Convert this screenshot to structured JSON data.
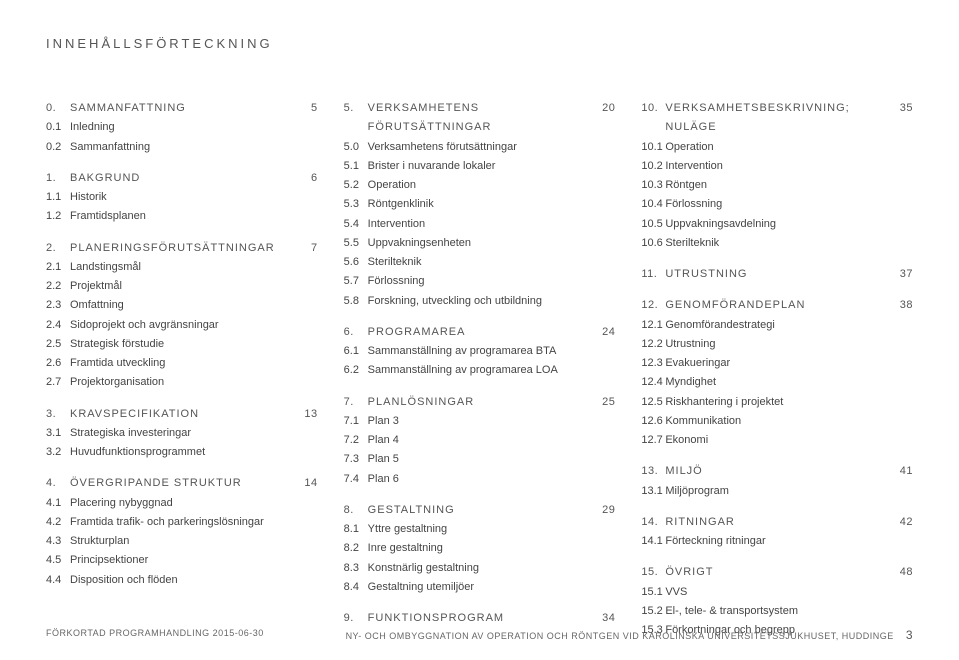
{
  "title": "INNEHÅLLSFÖRTECKNING",
  "columns": [
    [
      {
        "head": {
          "num": "0.",
          "label": "SAMMANFATTNING",
          "page": "5"
        },
        "items": [
          {
            "num": "0.1",
            "label": "Inledning"
          },
          {
            "num": "0.2",
            "label": "Sammanfattning"
          }
        ]
      },
      {
        "head": {
          "num": "1.",
          "label": "BAKGRUND",
          "page": "6"
        },
        "items": [
          {
            "num": "1.1",
            "label": "Historik"
          },
          {
            "num": "1.2",
            "label": "Framtidsplanen"
          }
        ]
      },
      {
        "head": {
          "num": "2.",
          "label": "PLANERINGSFÖRUTSÄTTNINGAR",
          "page": "7"
        },
        "items": [
          {
            "num": "2.1",
            "label": "Landstingsmål"
          },
          {
            "num": "2.2",
            "label": "Projektmål"
          },
          {
            "num": "2.3",
            "label": "Omfattning"
          },
          {
            "num": "2.4",
            "label": "Sidoprojekt och avgränsningar"
          },
          {
            "num": "2.5",
            "label": "Strategisk förstudie"
          },
          {
            "num": "2.6",
            "label": "Framtida utveckling"
          },
          {
            "num": "2.7",
            "label": "Projektorganisation"
          }
        ]
      },
      {
        "head": {
          "num": "3.",
          "label": "KRAVSPECIFIKATION",
          "page": "13"
        },
        "items": [
          {
            "num": "3.1",
            "label": "Strategiska investeringar"
          },
          {
            "num": "3.2",
            "label": "Huvudfunktionsprogrammet"
          }
        ]
      },
      {
        "head": {
          "num": "4.",
          "label": "ÖVERGRIPANDE STRUKTUR",
          "page": "14"
        },
        "items": [
          {
            "num": "4.1",
            "label": "Placering nybyggnad"
          },
          {
            "num": "4.2",
            "label": "Framtida trafik- och parkeringslösningar"
          },
          {
            "num": "4.3",
            "label": "Strukturplan"
          },
          {
            "num": "4.5",
            "label": "Principsektioner"
          },
          {
            "num": "4.4",
            "label": "Disposition och flöden"
          }
        ]
      }
    ],
    [
      {
        "head": {
          "num": "5.",
          "label": "VERKSAMHETENS FÖRUTSÄTTNINGAR",
          "page": "20"
        },
        "items": [
          {
            "num": "5.0",
            "label": "Verksamhetens förutsättningar"
          },
          {
            "num": "5.1",
            "label": "Brister i nuvarande lokaler"
          },
          {
            "num": "5.2",
            "label": "Operation"
          },
          {
            "num": "5.3",
            "label": "Röntgenklinik"
          },
          {
            "num": "5.4",
            "label": "Intervention"
          },
          {
            "num": "5.5",
            "label": "Uppvakningsenheten"
          },
          {
            "num": "5.6",
            "label": "Sterilteknik"
          },
          {
            "num": "5.7",
            "label": "Förlossning"
          },
          {
            "num": "5.8",
            "label": "Forskning, utveckling och utbildning"
          }
        ]
      },
      {
        "head": {
          "num": "6.",
          "label": "PROGRAMAREA",
          "page": "24"
        },
        "items": [
          {
            "num": "6.1",
            "label": "Sammanställning av programarea BTA"
          },
          {
            "num": "6.2",
            "label": "Sammanställning av programarea LOA"
          }
        ]
      },
      {
        "head": {
          "num": "7.",
          "label": "PLANLÖSNINGAR",
          "page": "25"
        },
        "items": [
          {
            "num": "7.1",
            "label": "Plan 3"
          },
          {
            "num": "7.2",
            "label": "Plan 4"
          },
          {
            "num": "7.3",
            "label": "Plan 5"
          },
          {
            "num": "7.4",
            "label": "Plan 6"
          }
        ]
      },
      {
        "head": {
          "num": "8.",
          "label": "GESTALTNING",
          "page": "29"
        },
        "items": [
          {
            "num": "8.1",
            "label": "Yttre gestaltning"
          },
          {
            "num": "8.2",
            "label": "Inre gestaltning"
          },
          {
            "num": "8.3",
            "label": "Konstnärlig gestaltning"
          },
          {
            "num": "8.4",
            "label": "Gestaltning utemiljöer"
          }
        ]
      },
      {
        "head": {
          "num": "9.",
          "label": "FUNKTIONSPROGRAM",
          "page": "34"
        },
        "items": []
      }
    ],
    [
      {
        "head": {
          "num": "10.",
          "label": "VERKSAMHETSBESKRIVNING; NULÄGE",
          "page": "35"
        },
        "items": [
          {
            "num": "10.1",
            "label": "Operation"
          },
          {
            "num": "10.2",
            "label": "Intervention"
          },
          {
            "num": "10.3",
            "label": "Röntgen"
          },
          {
            "num": "10.4",
            "label": "Förlossning"
          },
          {
            "num": "10.5",
            "label": "Uppvakningsavdelning"
          },
          {
            "num": "10.6",
            "label": "Sterilteknik"
          }
        ]
      },
      {
        "head": {
          "num": "11.",
          "label": "UTRUSTNING",
          "page": "37"
        },
        "items": []
      },
      {
        "head": {
          "num": "12.",
          "label": "GENOMFÖRANDEPLAN",
          "page": "38"
        },
        "items": [
          {
            "num": "12.1",
            "label": "Genomförandestrategi"
          },
          {
            "num": "12.2",
            "label": "Utrustning"
          },
          {
            "num": "12.3",
            "label": "Evakueringar"
          },
          {
            "num": "12.4",
            "label": "Myndighet"
          },
          {
            "num": "12.5",
            "label": "Riskhantering i projektet"
          },
          {
            "num": "12.6",
            "label": "Kommunikation"
          },
          {
            "num": "12.7",
            "label": "Ekonomi"
          }
        ]
      },
      {
        "head": {
          "num": "13.",
          "label": "MILJÖ",
          "page": "41"
        },
        "items": [
          {
            "num": "13.1",
            "label": "Miljöprogram"
          }
        ]
      },
      {
        "head": {
          "num": "14.",
          "label": "RITNINGAR",
          "page": "42"
        },
        "items": [
          {
            "num": "14.1",
            "label": "Förteckning ritningar"
          }
        ]
      },
      {
        "head": {
          "num": "15.",
          "label": "ÖVRIGT",
          "page": "48"
        },
        "items": [
          {
            "num": "15.1",
            "label": "VVS"
          },
          {
            "num": "15.2",
            "label": "El-, tele- & transportsystem"
          },
          {
            "num": "15.3",
            "label": "Förkortningar och begrepp"
          }
        ]
      }
    ]
  ],
  "footer": {
    "left": "FÖRKORTAD PROGRAMHANDLING 2015-06-30",
    "right": "NY- OCH OMBYGGNATION AV OPERATION OCH RÖNTGEN VID KAROLINSKA UNIVERSITETSSJUKHUSET, HUDDINGE",
    "page": "3"
  }
}
